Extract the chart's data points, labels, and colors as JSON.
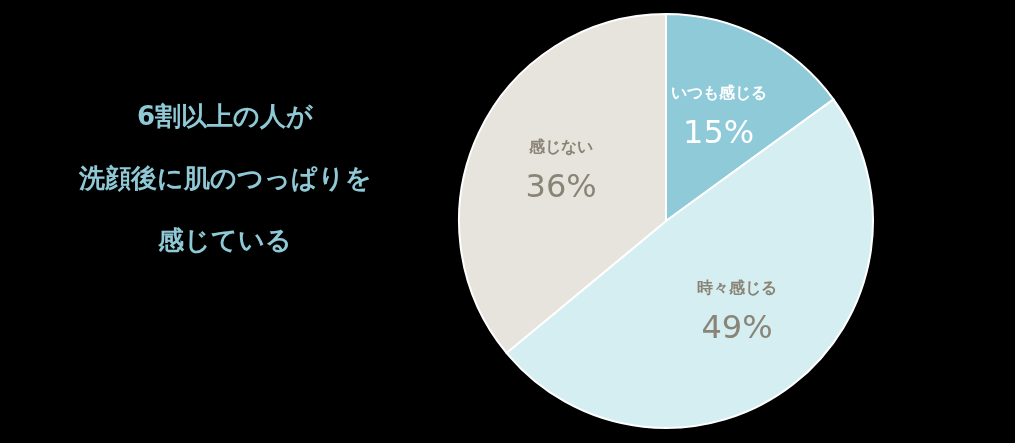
{
  "chart_data": {
    "type": "pie",
    "title": "6割以上の人が洗顔後に肌のつっぱりを感じている",
    "categories": [
      "いつも感じる",
      "時々感じる",
      "感じない"
    ],
    "values": [
      15,
      49,
      36
    ],
    "colors": [
      "#8ecad8",
      "#d5eef2",
      "#e6e4dc"
    ],
    "value_labels": [
      "15%",
      "49%",
      "36%"
    ]
  }
}
